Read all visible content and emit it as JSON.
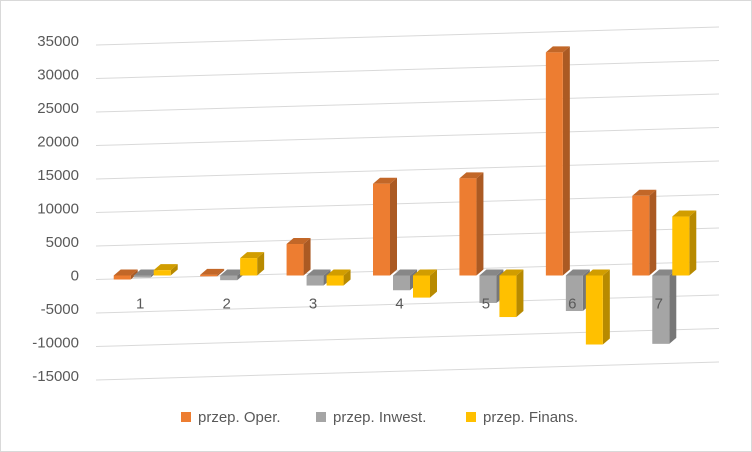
{
  "chart_data": {
    "type": "bar",
    "style": "3d-clustered-column",
    "categories": [
      "1",
      "2",
      "3",
      "4",
      "5",
      "6",
      "7"
    ],
    "series": [
      {
        "name": "przep. Oper.",
        "color": "#ed7d31",
        "values": [
          -600,
          100,
          4700,
          13700,
          14500,
          33300,
          11900
        ]
      },
      {
        "name": "przep. Inwest.",
        "color": "#a5a5a5",
        "values": [
          -300,
          -700,
          -1500,
          -2200,
          -4100,
          -5300,
          -10200
        ]
      },
      {
        "name": "przep. Finans.",
        "color": "#ffc000",
        "values": [
          800,
          2600,
          -1500,
          -3300,
          -6200,
          -10300,
          8800
        ]
      }
    ],
    "y_ticks": [
      "35000",
      "30000",
      "25000",
      "20000",
      "15000",
      "10000",
      "5000",
      "0",
      "-5000",
      "-10000",
      "-15000"
    ],
    "ylim": [
      -15000,
      35000
    ],
    "grid": true,
    "legend": "bottom"
  }
}
